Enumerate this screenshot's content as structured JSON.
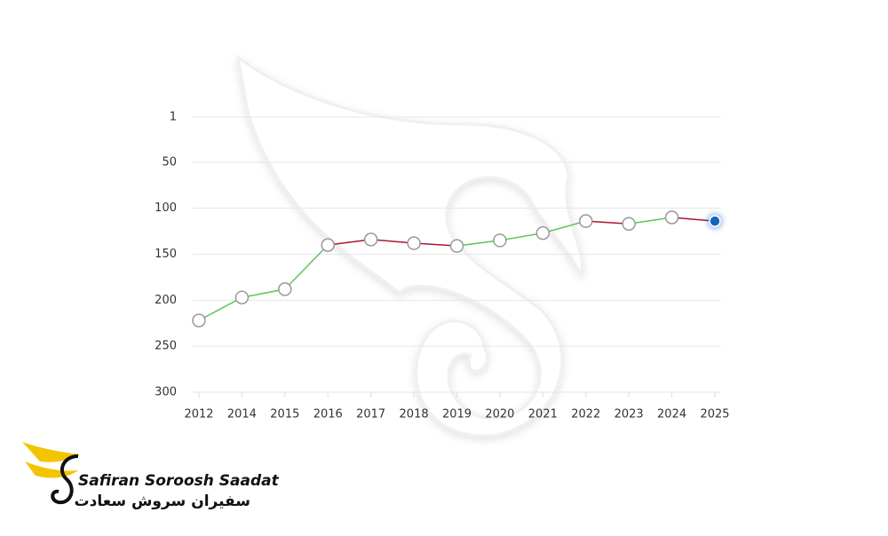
{
  "chart_data": {
    "type": "line",
    "categories": [
      "2012",
      "2014",
      "2015",
      "2016",
      "2017",
      "2018",
      "2019",
      "2020",
      "2021",
      "2022",
      "2023",
      "2024",
      "2025"
    ],
    "values": [
      222,
      197,
      188,
      140,
      134,
      138,
      141,
      135,
      127,
      114,
      117,
      110,
      114
    ],
    "segment_colors": [
      "#5cc45a",
      "#5cc45a",
      "#5cc45a",
      "#b0132f",
      "#b0132f",
      "#b0132f",
      "#5cc45a",
      "#5cc45a",
      "#5cc45a",
      "#b0132f",
      "#5cc45a",
      "#b0132f"
    ],
    "marker_color": "#ffffff",
    "last_point_color": "#1565c0",
    "ylim": [
      1,
      300
    ],
    "y_reversed": true,
    "yticks": [
      1,
      50,
      100,
      150,
      200,
      250,
      300
    ],
    "grid": true
  },
  "logo": {
    "name": "Safiran Soroosh Saadat",
    "name_fa": "سفیران سروش سعادت"
  }
}
